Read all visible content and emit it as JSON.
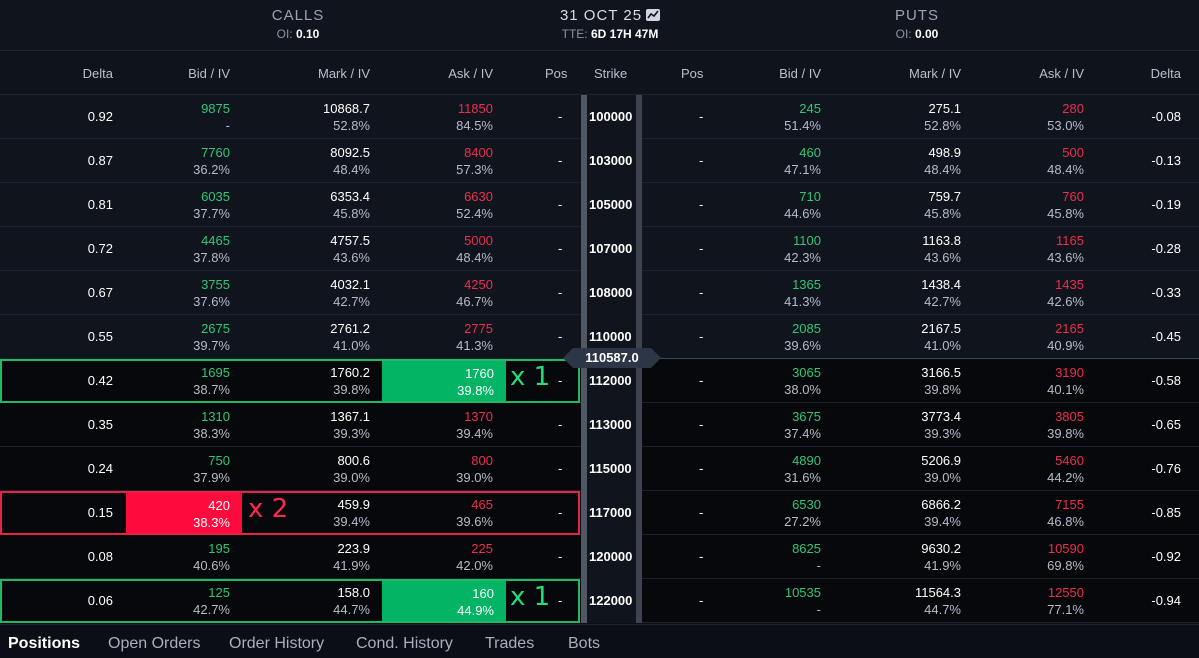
{
  "header": {
    "calls_title": "CALLS",
    "calls_oi_label": "OI:",
    "calls_oi_value": "0.10",
    "expiry": "31 OCT 25",
    "tte_label": "TTE:",
    "tte_value": "6D 17H 47M",
    "puts_title": "PUTS",
    "puts_oi_label": "OI:",
    "puts_oi_value": "0.00"
  },
  "columns": {
    "delta": "Delta",
    "bid_iv": "Bid / IV",
    "mark_iv": "Mark / IV",
    "ask_iv": "Ask / IV",
    "pos": "Pos",
    "strike": "Strike",
    "put_pos": "Pos",
    "put_bid_iv": "Bid / IV",
    "put_mark_iv": "Mark / IV",
    "put_ask_iv": "Ask / IV",
    "put_delta": "Delta"
  },
  "index_price": "110587.0",
  "rows": [
    {
      "strike": "100000",
      "c_delta": "0.92",
      "c_bid": "9875",
      "c_bid_iv": "-",
      "c_mark": "10868.7",
      "c_mark_iv": "52.8%",
      "c_ask": "11850",
      "c_ask_iv": "84.5%",
      "c_pos": "-",
      "p_pos": "-",
      "p_bid": "245",
      "p_bid_iv": "51.4%",
      "p_mark": "275.1",
      "p_mark_iv": "52.8%",
      "p_ask": "280",
      "p_ask_iv": "53.0%",
      "p_delta": "-0.08"
    },
    {
      "strike": "103000",
      "c_delta": "0.87",
      "c_bid": "7760",
      "c_bid_iv": "36.2%",
      "c_mark": "8092.5",
      "c_mark_iv": "48.4%",
      "c_ask": "8400",
      "c_ask_iv": "57.3%",
      "c_pos": "-",
      "p_pos": "-",
      "p_bid": "460",
      "p_bid_iv": "47.1%",
      "p_mark": "498.9",
      "p_mark_iv": "48.4%",
      "p_ask": "500",
      "p_ask_iv": "48.4%",
      "p_delta": "-0.13"
    },
    {
      "strike": "105000",
      "c_delta": "0.81",
      "c_bid": "6035",
      "c_bid_iv": "37.7%",
      "c_mark": "6353.4",
      "c_mark_iv": "45.8%",
      "c_ask": "6630",
      "c_ask_iv": "52.4%",
      "c_pos": "-",
      "p_pos": "-",
      "p_bid": "710",
      "p_bid_iv": "44.6%",
      "p_mark": "759.7",
      "p_mark_iv": "45.8%",
      "p_ask": "760",
      "p_ask_iv": "45.8%",
      "p_delta": "-0.19"
    },
    {
      "strike": "107000",
      "c_delta": "0.72",
      "c_bid": "4465",
      "c_bid_iv": "37.8%",
      "c_mark": "4757.5",
      "c_mark_iv": "43.6%",
      "c_ask": "5000",
      "c_ask_iv": "48.4%",
      "c_pos": "-",
      "p_pos": "-",
      "p_bid": "1100",
      "p_bid_iv": "42.3%",
      "p_mark": "1163.8",
      "p_mark_iv": "43.6%",
      "p_ask": "1165",
      "p_ask_iv": "43.6%",
      "p_delta": "-0.28"
    },
    {
      "strike": "108000",
      "c_delta": "0.67",
      "c_bid": "3755",
      "c_bid_iv": "37.6%",
      "c_mark": "4032.1",
      "c_mark_iv": "42.7%",
      "c_ask": "4250",
      "c_ask_iv": "46.7%",
      "c_pos": "-",
      "p_pos": "-",
      "p_bid": "1365",
      "p_bid_iv": "41.3%",
      "p_mark": "1438.4",
      "p_mark_iv": "42.7%",
      "p_ask": "1435",
      "p_ask_iv": "42.6%",
      "p_delta": "-0.33"
    },
    {
      "strike": "110000",
      "c_delta": "0.55",
      "c_bid": "2675",
      "c_bid_iv": "39.7%",
      "c_mark": "2761.2",
      "c_mark_iv": "41.0%",
      "c_ask": "2775",
      "c_ask_iv": "41.3%",
      "c_pos": "-",
      "p_pos": "-",
      "p_bid": "2085",
      "p_bid_iv": "39.6%",
      "p_mark": "2167.5",
      "p_mark_iv": "41.0%",
      "p_ask": "2165",
      "p_ask_iv": "40.9%",
      "p_delta": "-0.45"
    },
    {
      "strike": "112000",
      "c_delta": "0.42",
      "c_bid": "1695",
      "c_bid_iv": "38.7%",
      "c_mark": "1760.2",
      "c_mark_iv": "39.8%",
      "c_ask": "1760",
      "c_ask_iv": "39.8%",
      "c_pos": "-",
      "p_pos": "-",
      "p_bid": "3065",
      "p_bid_iv": "38.0%",
      "p_mark": "3166.5",
      "p_mark_iv": "39.8%",
      "p_ask": "3190",
      "p_ask_iv": "40.1%",
      "p_delta": "-0.58",
      "anno": "x 1"
    },
    {
      "strike": "113000",
      "c_delta": "0.35",
      "c_bid": "1310",
      "c_bid_iv": "38.3%",
      "c_mark": "1367.1",
      "c_mark_iv": "39.3%",
      "c_ask": "1370",
      "c_ask_iv": "39.4%",
      "c_pos": "-",
      "p_pos": "-",
      "p_bid": "3675",
      "p_bid_iv": "37.4%",
      "p_mark": "3773.4",
      "p_mark_iv": "39.3%",
      "p_ask": "3805",
      "p_ask_iv": "39.8%",
      "p_delta": "-0.65"
    },
    {
      "strike": "115000",
      "c_delta": "0.24",
      "c_bid": "750",
      "c_bid_iv": "37.9%",
      "c_mark": "800.6",
      "c_mark_iv": "39.0%",
      "c_ask": "800",
      "c_ask_iv": "39.0%",
      "c_pos": "-",
      "p_pos": "-",
      "p_bid": "4890",
      "p_bid_iv": "31.6%",
      "p_mark": "5206.9",
      "p_mark_iv": "39.0%",
      "p_ask": "5460",
      "p_ask_iv": "44.2%",
      "p_delta": "-0.76"
    },
    {
      "strike": "117000",
      "c_delta": "0.15",
      "c_bid": "420",
      "c_bid_iv": "38.3%",
      "c_mark": "459.9",
      "c_mark_iv": "39.4%",
      "c_ask": "465",
      "c_ask_iv": "39.6%",
      "c_pos": "-",
      "p_pos": "-",
      "p_bid": "6530",
      "p_bid_iv": "27.2%",
      "p_mark": "6866.2",
      "p_mark_iv": "39.4%",
      "p_ask": "7155",
      "p_ask_iv": "46.8%",
      "p_delta": "-0.85",
      "anno": "x 2"
    },
    {
      "strike": "120000",
      "c_delta": "0.08",
      "c_bid": "195",
      "c_bid_iv": "40.6%",
      "c_mark": "223.9",
      "c_mark_iv": "41.9%",
      "c_ask": "225",
      "c_ask_iv": "42.0%",
      "c_pos": "-",
      "p_pos": "-",
      "p_bid": "8625",
      "p_bid_iv": "-",
      "p_mark": "9630.2",
      "p_mark_iv": "41.9%",
      "p_ask": "10590",
      "p_ask_iv": "69.8%",
      "p_delta": "-0.92"
    },
    {
      "strike": "122000",
      "c_delta": "0.06",
      "c_bid": "125",
      "c_bid_iv": "42.7%",
      "c_mark": "158.0",
      "c_mark_iv": "44.7%",
      "c_ask": "160",
      "c_ask_iv": "44.9%",
      "c_pos": "-",
      "p_pos": "-",
      "p_bid": "10535",
      "p_bid_iv": "-",
      "p_mark": "11564.3",
      "p_mark_iv": "44.7%",
      "p_ask": "12550",
      "p_ask_iv": "77.1%",
      "p_delta": "-0.94",
      "anno": "x 1"
    }
  ],
  "tabs": [
    "Positions",
    "Open Orders",
    "Order History",
    "Cond. History",
    "Trades",
    "Bots"
  ],
  "colors": {
    "bid": "#2fc778",
    "ask": "#ee2e4e",
    "buy_highlight": "#02b464",
    "sell_highlight": "#ff0a3c"
  }
}
